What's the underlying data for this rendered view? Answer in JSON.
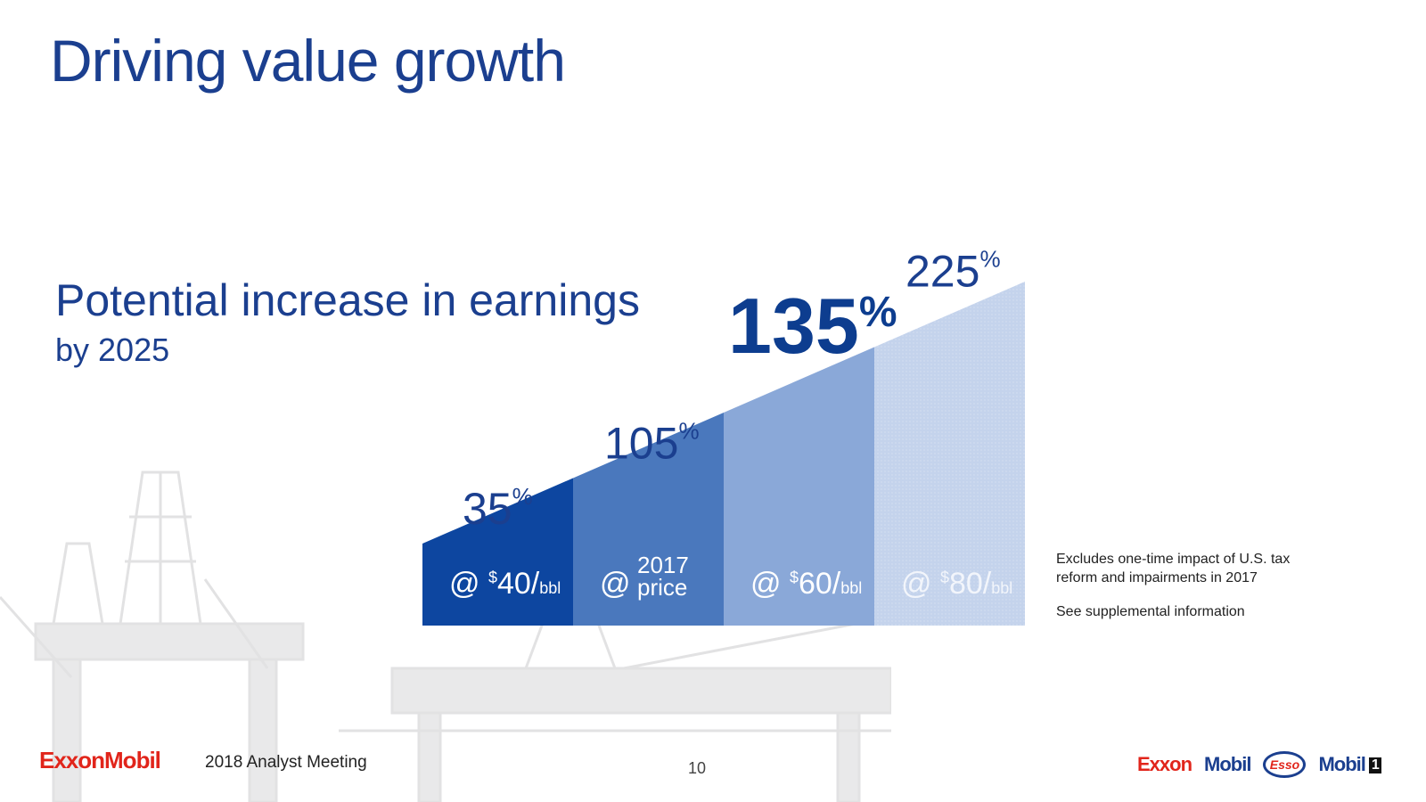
{
  "title": "Driving value growth",
  "subtitle": "Potential increase in earnings",
  "subtitle_by": "by 2025",
  "colors": {
    "title": "#1b3f8f",
    "bar1": "#0d46a0",
    "bar2": "#4a78bd",
    "bar3": "#8aa8d8",
    "bar4": "#c4d3ec",
    "exxon_red": "#e1251b"
  },
  "chart_data": {
    "type": "bar",
    "categories": [
      "@ $40/bbl",
      "@ 2017 price",
      "@ $60/bbl",
      "@ $80/bbl"
    ],
    "values": [
      35,
      105,
      135,
      225
    ],
    "value_labels": [
      "35",
      "105",
      "135",
      "225"
    ],
    "value_suffix": "%",
    "highlight_index": 2,
    "bar_labels": [
      {
        "prefix": "@",
        "sup": "$",
        "main": "40/",
        "unit": "bbl"
      },
      {
        "prefix": "@",
        "line1": "2017",
        "line2": "price"
      },
      {
        "prefix": "@",
        "sup": "$",
        "main": "60/",
        "unit": "bbl"
      },
      {
        "prefix": "@",
        "sup": "$",
        "main": "80/",
        "unit": "bbl"
      }
    ],
    "title": "Potential increase in earnings",
    "xlabel": "",
    "ylabel": ""
  },
  "notes": {
    "excludes": "Excludes one-time impact of  U.S. tax reform and impairments in 2017",
    "supplemental": "See supplemental information"
  },
  "footer": {
    "company_logo": "ExxonMobil",
    "meeting": "2018 Analyst Meeting",
    "page_number": "10",
    "brands": {
      "exxon": "Exxon",
      "mobil": "Mobil",
      "esso": "Esso",
      "mobil1": "Mobil",
      "mobil1_one": "1"
    }
  },
  "icons": {
    "background": "oil-rig-silhouette-icon"
  }
}
